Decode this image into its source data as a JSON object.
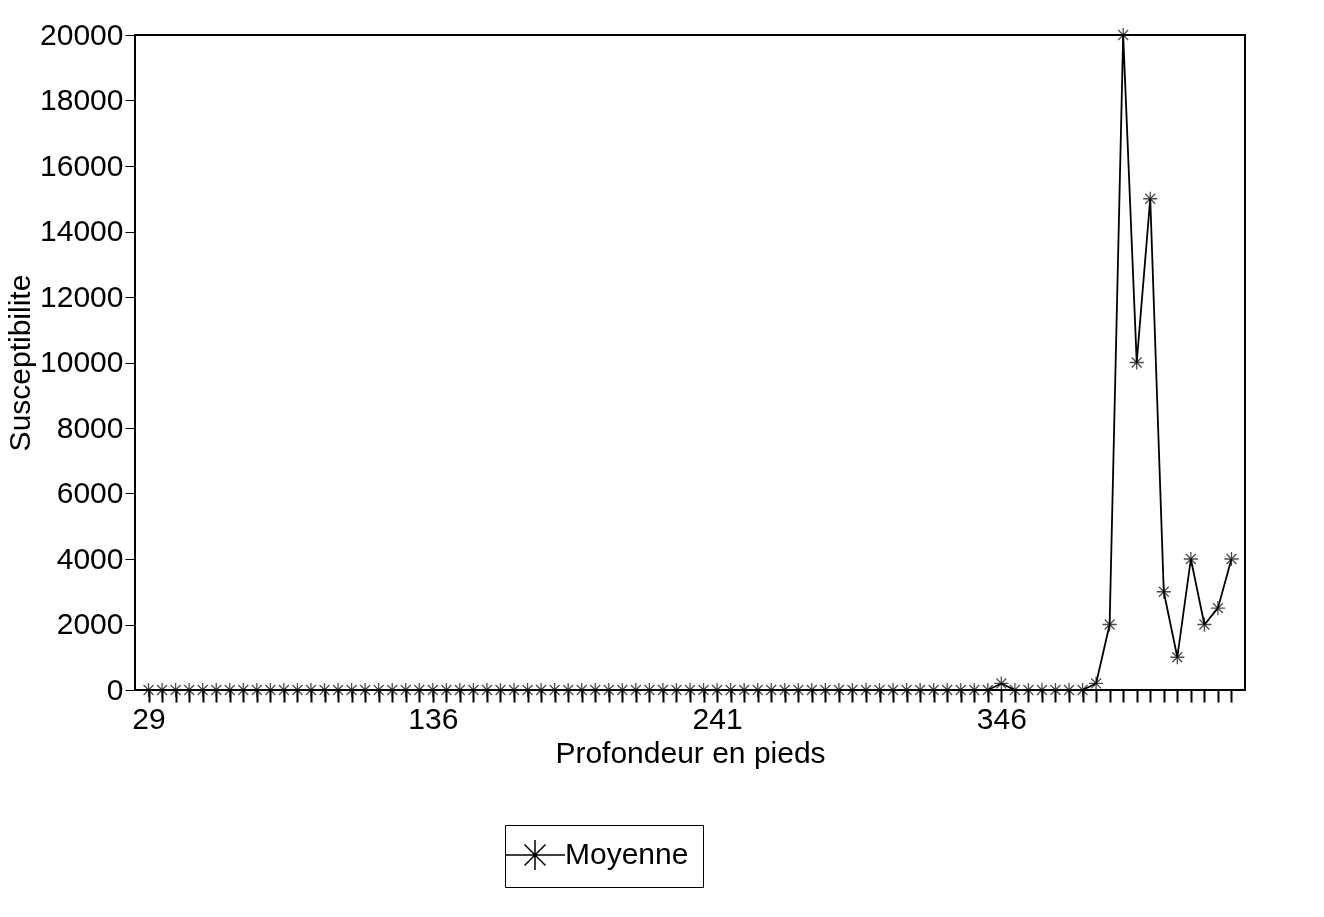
{
  "chart_data": {
    "type": "line",
    "xlabel": "Profondeur en pieds",
    "ylabel": "Susceptibilite",
    "categories": [
      "29",
      null,
      null,
      null,
      null,
      null,
      null,
      null,
      null,
      null,
      null,
      null,
      null,
      null,
      null,
      null,
      null,
      null,
      null,
      null,
      null,
      "136",
      null,
      null,
      null,
      null,
      null,
      null,
      null,
      null,
      null,
      null,
      null,
      null,
      null,
      null,
      null,
      null,
      null,
      null,
      null,
      null,
      "241",
      null,
      null,
      null,
      null,
      null,
      null,
      null,
      null,
      null,
      null,
      null,
      null,
      null,
      null,
      null,
      null,
      null,
      null,
      null,
      null,
      "346",
      null,
      null,
      null,
      null,
      null,
      null,
      null,
      null,
      null,
      null,
      null,
      null,
      null,
      null,
      null,
      null,
      null
    ],
    "series": [
      {
        "name": "Moyenne",
        "color": "#000000",
        "values": [
          0,
          0,
          0,
          0,
          0,
          0,
          0,
          0,
          0,
          0,
          0,
          0,
          0,
          0,
          0,
          0,
          0,
          0,
          0,
          0,
          0,
          0,
          0,
          0,
          0,
          0,
          0,
          0,
          0,
          0,
          0,
          0,
          0,
          0,
          0,
          0,
          0,
          0,
          0,
          0,
          0,
          0,
          0,
          0,
          0,
          0,
          0,
          0,
          0,
          0,
          0,
          0,
          0,
          0,
          0,
          0,
          0,
          0,
          0,
          0,
          0,
          0,
          0,
          200,
          0,
          0,
          0,
          0,
          0,
          0,
          200,
          2000,
          20000,
          10000,
          15000,
          3000,
          1000,
          4000,
          2000,
          2500,
          4000
        ]
      }
    ],
    "ylim": [
      0,
      20000
    ],
    "yticks": [
      0,
      2000,
      4000,
      6000,
      8000,
      10000,
      12000,
      14000,
      16000,
      18000,
      20000
    ],
    "grid": false,
    "legend": "bottom",
    "marker": "cross",
    "line_style": "solid"
  }
}
